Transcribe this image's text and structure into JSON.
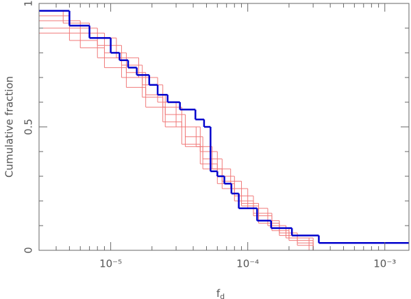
{
  "chart_data": {
    "type": "step",
    "y_label": "Cumulative fraction",
    "x_label": "f",
    "x_label_sub": "d",
    "log_x": true,
    "xlim": [
      3e-06,
      0.0015
    ],
    "ylim": [
      0,
      1
    ],
    "xticks": [
      {
        "value": 1e-05,
        "label": "10⁻⁵"
      },
      {
        "value": 0.0001,
        "label": "10⁻⁴"
      },
      {
        "value": 0.001,
        "label": "10⁻³"
      }
    ],
    "yticks": [
      0,
      0.5,
      1
    ],
    "yminor": [
      0.1,
      0.2,
      0.3,
      0.4,
      0.6,
      0.7,
      0.8,
      0.9
    ],
    "series": [
      {
        "color": "#f07878",
        "width": 1,
        "x": [
          3e-06,
          5e-06,
          8e-06,
          1.2e-05,
          1.7e-05,
          2.4e-05,
          3.3e-05,
          4.5e-05,
          6e-05,
          8e-05,
          0.00011,
          0.00015,
          0.0002,
          0.0003
        ],
        "values": [
          0.95,
          0.9,
          0.83,
          0.75,
          0.67,
          0.58,
          0.5,
          0.4,
          0.3,
          0.22,
          0.15,
          0.08,
          0.04,
          0
        ]
      },
      {
        "color": "#f07878",
        "width": 1,
        "x": [
          3e-06,
          5e-06,
          8e-06,
          1.2e-05,
          1.7e-05,
          2.4e-05,
          3.3e-05,
          4.5e-05,
          6e-05,
          8e-05,
          0.00011,
          0.00015,
          0.0002,
          0.0003
        ],
        "values": [
          0.9,
          0.85,
          0.78,
          0.7,
          0.62,
          0.52,
          0.43,
          0.35,
          0.27,
          0.2,
          0.14,
          0.09,
          0.05,
          0
        ]
      },
      {
        "color": "#f07878",
        "width": 1,
        "x": [
          3e-06,
          6e-06,
          9e-06,
          1.3e-05,
          1.8e-05,
          2.5e-05,
          3.5e-05,
          4.7e-05,
          6.5e-05,
          9e-05,
          0.00012,
          0.00017,
          0.00023,
          0.0003
        ],
        "values": [
          0.93,
          0.88,
          0.8,
          0.72,
          0.63,
          0.55,
          0.46,
          0.37,
          0.28,
          0.19,
          0.12,
          0.07,
          0.03,
          0
        ]
      },
      {
        "color": "#f07878",
        "width": 1,
        "x": [
          3e-06,
          4.5e-06,
          7e-06,
          1.1e-05,
          1.6e-05,
          2.2e-05,
          3e-05,
          4.2e-05,
          5.5e-05,
          7.5e-05,
          0.0001,
          0.00014,
          0.00019,
          0.00028
        ],
        "values": [
          0.97,
          0.92,
          0.86,
          0.78,
          0.7,
          0.6,
          0.5,
          0.42,
          0.33,
          0.25,
          0.17,
          0.1,
          0.05,
          0
        ]
      },
      {
        "color": "#f07878",
        "width": 1,
        "x": [
          3e-06,
          6e-06,
          9e-06,
          1.3e-05,
          1.8e-05,
          2.5e-05,
          3.5e-05,
          4.7e-05,
          6.5e-05,
          9e-05,
          0.00012,
          0.00017,
          0.00023,
          0.0003
        ],
        "values": [
          0.88,
          0.82,
          0.74,
          0.66,
          0.58,
          0.5,
          0.42,
          0.33,
          0.25,
          0.18,
          0.11,
          0.06,
          0.02,
          0
        ]
      },
      {
        "color": "#0000cc",
        "width": 2.5,
        "x": [
          3e-06,
          5e-06,
          7e-06,
          1e-05,
          1.16e-05,
          1.34e-05,
          1.55e-05,
          1.91e-05,
          2.2e-05,
          2.6e-05,
          3.2e-05,
          4.15e-05,
          4.8e-05,
          5.35e-05,
          6e-05,
          6.75e-05,
          7.6e-05,
          8.6e-05,
          0.000117,
          0.000148,
          0.00021,
          0.00033
        ],
        "values": [
          0.97,
          0.91,
          0.86,
          0.8,
          0.77,
          0.74,
          0.71,
          0.67,
          0.63,
          0.6,
          0.57,
          0.53,
          0.5,
          0.32,
          0.3,
          0.27,
          0.23,
          0.17,
          0.12,
          0.09,
          0.06,
          0.03
        ]
      }
    ]
  }
}
